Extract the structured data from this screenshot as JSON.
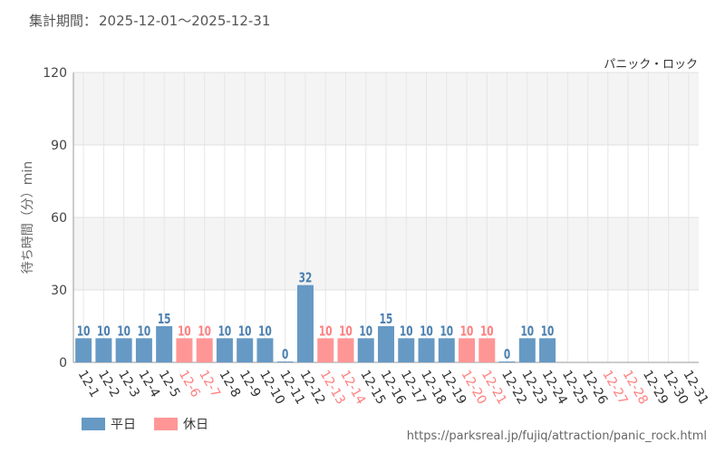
{
  "header": {
    "period_label": "集計期間：",
    "period_value": "2025-12-01〜2025-12-31"
  },
  "colors": {
    "weekday": "#6699c4",
    "holiday": "#ff9696",
    "weekday_text": "#4a7fb0",
    "holiday_text": "#ff7f7f"
  },
  "chart_data": {
    "type": "bar",
    "title": "パニック・ロック",
    "xlabel": "",
    "ylabel": "待ち時間（分）min",
    "ylim": [
      0,
      120
    ],
    "yticks": [
      0,
      30,
      60,
      90,
      120
    ],
    "categories": [
      "12-1",
      "12-2",
      "12-3",
      "12-4",
      "12-5",
      "12-6",
      "12-7",
      "12-8",
      "12-9",
      "12-10",
      "12-11",
      "12-12",
      "12-13",
      "12-14",
      "12-15",
      "12-16",
      "12-17",
      "12-18",
      "12-19",
      "12-20",
      "12-21",
      "12-22",
      "12-23",
      "12-24",
      "12-25",
      "12-26",
      "12-27",
      "12-28",
      "12-29",
      "12-30",
      "12-31"
    ],
    "values": [
      10,
      10,
      10,
      10,
      15,
      10,
      10,
      10,
      10,
      10,
      0,
      32,
      10,
      10,
      10,
      15,
      10,
      10,
      10,
      10,
      10,
      0,
      10,
      10,
      null,
      null,
      null,
      null,
      null,
      null,
      null
    ],
    "holiday": [
      false,
      false,
      false,
      false,
      false,
      true,
      true,
      false,
      false,
      false,
      false,
      false,
      true,
      true,
      false,
      false,
      false,
      false,
      false,
      true,
      true,
      false,
      false,
      false,
      false,
      false,
      true,
      true,
      false,
      false,
      false
    ],
    "legend": [
      {
        "name": "平日",
        "type": "weekday"
      },
      {
        "name": "休日",
        "type": "holiday"
      }
    ]
  },
  "footer": {
    "source_url": "https://parksreal.jp/fujiq/attraction/panic_rock.html"
  }
}
